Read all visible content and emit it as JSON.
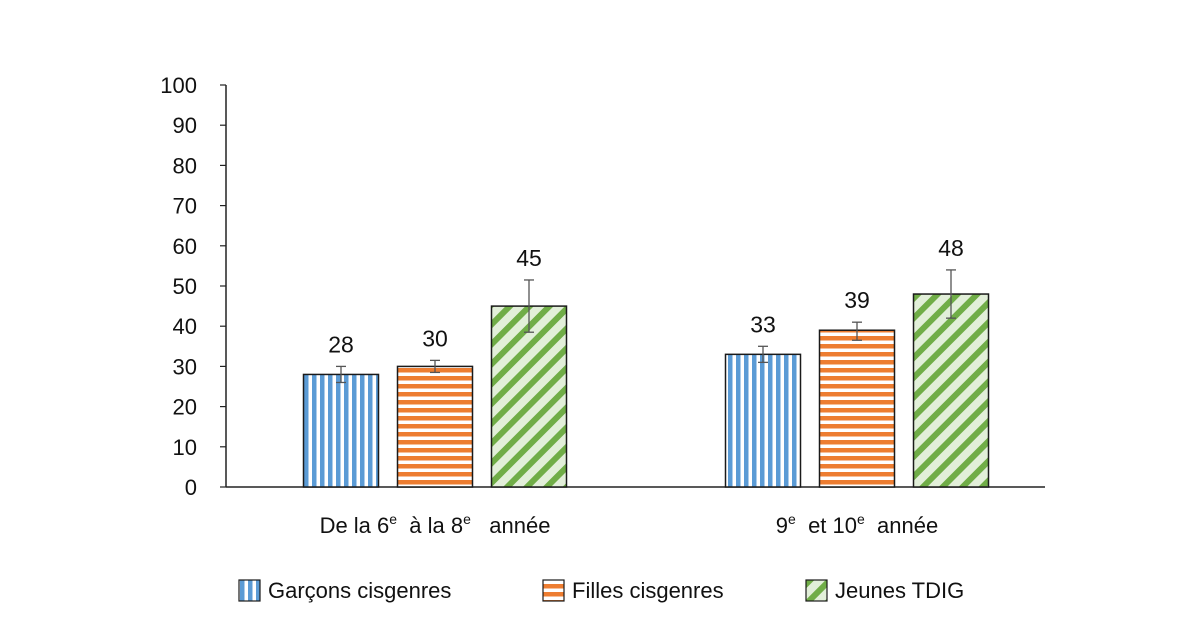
{
  "chart_data": {
    "type": "bar",
    "title": "",
    "xlabel": "",
    "ylabel": "",
    "ylim": [
      0,
      100
    ],
    "yticks": [
      0,
      10,
      20,
      30,
      40,
      50,
      60,
      70,
      80,
      90,
      100
    ],
    "grid": false,
    "legend_position": "bottom",
    "categories": [
      {
        "parts": [
          {
            "text": "De la 6"
          },
          {
            "text": "e",
            "sup": true
          },
          {
            "text": "  à la 8"
          },
          {
            "text": "e",
            "sup": true
          },
          {
            "text": "   année"
          }
        ]
      },
      {
        "parts": [
          {
            "text": "9"
          },
          {
            "text": "e",
            "sup": true
          },
          {
            "text": "  et 10"
          },
          {
            "text": "e",
            "sup": true
          },
          {
            "text": "  année"
          }
        ]
      }
    ],
    "series": [
      {
        "name": "Garçons cisgenres",
        "pattern": "vertical",
        "color": "#5b9bd5",
        "values": [
          28,
          33
        ],
        "error_low": [
          26,
          31
        ],
        "error_high": [
          30,
          35
        ]
      },
      {
        "name": "Filles cisgenres",
        "pattern": "horizontal",
        "color": "#ed7d31",
        "values": [
          30,
          39
        ],
        "error_low": [
          28.5,
          36.5
        ],
        "error_high": [
          31.5,
          41
        ]
      },
      {
        "name": "Jeunes TDIG",
        "pattern": "diagonal",
        "color": "#70ad47",
        "values": [
          45,
          48
        ],
        "error_low": [
          38.5,
          42
        ],
        "error_high": [
          51.5,
          54
        ]
      }
    ]
  }
}
